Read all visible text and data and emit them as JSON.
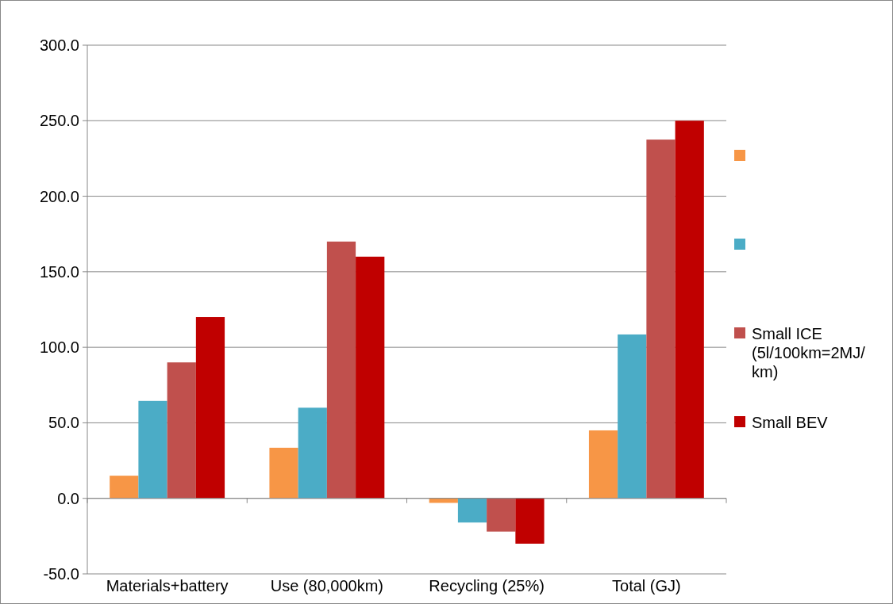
{
  "chart_data": {
    "type": "bar",
    "categories": [
      "Materials+battery",
      "Use (80,000km)",
      "Recycling (25%)",
      "Total (GJ)"
    ],
    "series": [
      {
        "color": "#f79646",
        "values": [
          15,
          33.5,
          -3,
          45
        ]
      },
      {
        "color": "#4bacc6",
        "values": [
          64.5,
          60,
          -16,
          108.5
        ]
      },
      {
        "name": "Small ICE (5l/100km=2MJ/km)",
        "color": "#c0504d",
        "values": [
          90,
          170,
          -22,
          237.5
        ]
      },
      {
        "name": "Small BEV",
        "color": "#c00000",
        "values": [
          120,
          160,
          -30,
          250
        ]
      }
    ],
    "ylim": [
      -50,
      300
    ],
    "yticks": [
      {
        "value": -50,
        "label": "-50.0"
      },
      {
        "value": 0,
        "label": "0.0"
      },
      {
        "value": 50,
        "label": "50.0"
      },
      {
        "value": 100,
        "label": "100.0"
      },
      {
        "value": 150,
        "label": "150.0"
      },
      {
        "value": 200,
        "label": "200.0"
      },
      {
        "value": 250,
        "label": "250.0"
      },
      {
        "value": 300,
        "label": "300.0"
      }
    ],
    "grid": "y",
    "legend": "right"
  }
}
